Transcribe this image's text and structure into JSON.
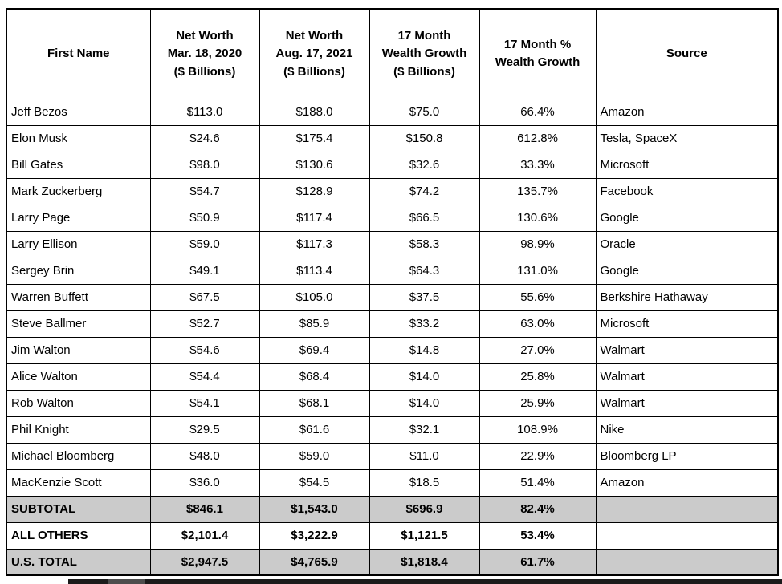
{
  "table": {
    "columns": [
      {
        "key": "first-name",
        "label": "First Name"
      },
      {
        "key": "networth-2020",
        "label": "Net Worth\nMar. 18, 2020\n($ Billions)"
      },
      {
        "key": "networth-2021",
        "label": "Net Worth\nAug. 17, 2021\n($ Billions)"
      },
      {
        "key": "wealth-growth",
        "label": "17 Month\nWealth Growth\n($ Billions)"
      },
      {
        "key": "wealth-growth-pct",
        "label": "17 Month %\nWealth Growth"
      },
      {
        "key": "source",
        "label": "Source"
      }
    ],
    "rows": [
      {
        "cells": [
          "Jeff Bezos",
          "$113.0",
          "$188.0",
          "$75.0",
          "66.4%",
          "Amazon"
        ]
      },
      {
        "cells": [
          "Elon Musk",
          "$24.6",
          "$175.4",
          "$150.8",
          "612.8%",
          "Tesla, SpaceX"
        ]
      },
      {
        "cells": [
          "Bill Gates",
          "$98.0",
          "$130.6",
          "$32.6",
          "33.3%",
          "Microsoft"
        ]
      },
      {
        "cells": [
          "Mark Zuckerberg",
          "$54.7",
          "$128.9",
          "$74.2",
          "135.7%",
          "Facebook"
        ]
      },
      {
        "cells": [
          "Larry Page",
          "$50.9",
          "$117.4",
          "$66.5",
          "130.6%",
          "Google"
        ]
      },
      {
        "cells": [
          "Larry Ellison",
          "$59.0",
          "$117.3",
          "$58.3",
          "98.9%",
          "Oracle"
        ]
      },
      {
        "cells": [
          "Sergey Brin",
          "$49.1",
          "$113.4",
          "$64.3",
          "131.0%",
          "Google"
        ]
      },
      {
        "cells": [
          "Warren Buffett",
          "$67.5",
          "$105.0",
          "$37.5",
          "55.6%",
          "Berkshire Hathaway"
        ]
      },
      {
        "cells": [
          "Steve Ballmer",
          "$52.7",
          "$85.9",
          "$33.2",
          "63.0%",
          "Microsoft"
        ]
      },
      {
        "cells": [
          "Jim Walton",
          "$54.6",
          "$69.4",
          "$14.8",
          "27.0%",
          "Walmart"
        ]
      },
      {
        "cells": [
          "Alice Walton",
          "$54.4",
          "$68.4",
          "$14.0",
          "25.8%",
          "Walmart"
        ]
      },
      {
        "cells": [
          "Rob Walton",
          "$54.1",
          "$68.1",
          "$14.0",
          "25.9%",
          "Walmart"
        ]
      },
      {
        "cells": [
          "Phil Knight",
          "$29.5",
          "$61.6",
          "$32.1",
          "108.9%",
          "Nike"
        ]
      },
      {
        "cells": [
          "Michael Bloomberg",
          "$48.0",
          "$59.0",
          "$11.0",
          "22.9%",
          "Bloomberg LP"
        ]
      },
      {
        "cells": [
          "MacKenzie Scott",
          "$36.0",
          "$54.5",
          "$18.5",
          "51.4%",
          "Amazon"
        ]
      }
    ],
    "summary_rows": [
      {
        "cells": [
          "SUBTOTAL",
          "$846.1",
          "$1,543.0",
          "$696.9",
          "82.4%",
          ""
        ],
        "shaded": true
      },
      {
        "cells": [
          "ALL OTHERS",
          "$2,101.4",
          "$3,222.9",
          "$1,121.5",
          "53.4%",
          ""
        ],
        "shaded": false
      },
      {
        "cells": [
          "U.S. TOTAL",
          "$2,947.5",
          "$4,765.9",
          "$1,818.4",
          "61.7%",
          ""
        ],
        "shaded": true
      }
    ]
  },
  "colors": {
    "page_bg": "#ffffff",
    "border": "#000000",
    "text": "#000000",
    "shaded_row_bg": "#cbcbcb",
    "scrollbar_track": "#1b1b1b",
    "scrollbar_thumb": "#4d4d4d"
  }
}
